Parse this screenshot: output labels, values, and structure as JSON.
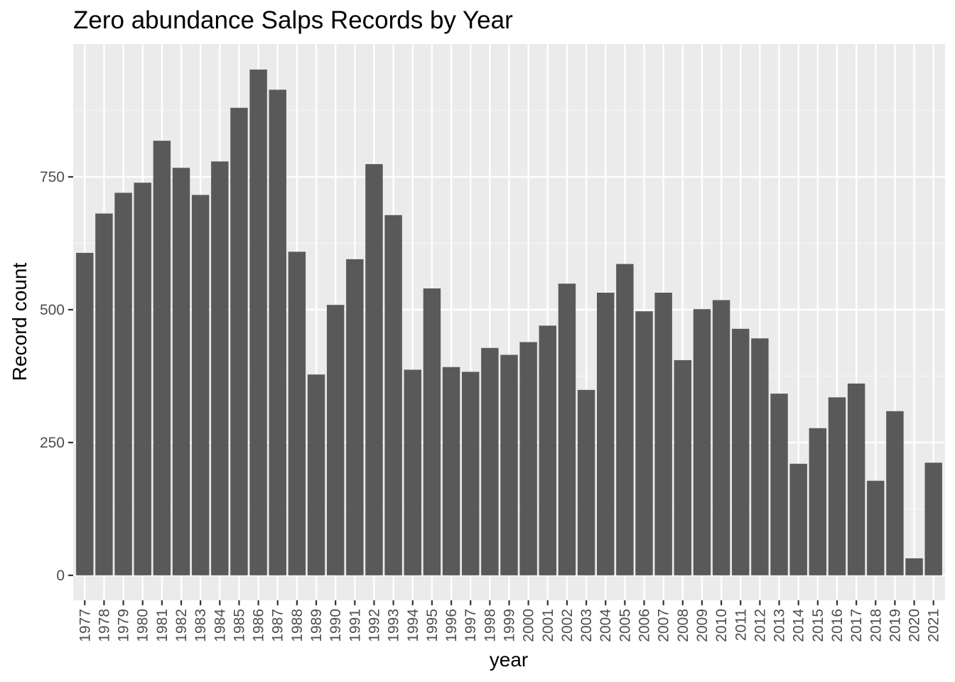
{
  "chart_data": {
    "type": "bar",
    "title": "Zero abundance Salps Records by Year",
    "xlabel": "year",
    "ylabel": "Record count",
    "categories": [
      "1977",
      "1978",
      "1979",
      "1980",
      "1981",
      "1982",
      "1983",
      "1984",
      "1985",
      "1986",
      "1987",
      "1988",
      "1989",
      "1990",
      "1991",
      "1992",
      "1993",
      "1994",
      "1995",
      "1996",
      "1997",
      "1998",
      "1999",
      "2000",
      "2001",
      "2002",
      "2003",
      "2004",
      "2005",
      "2006",
      "2007",
      "2008",
      "2009",
      "2010",
      "2011",
      "2012",
      "2013",
      "2014",
      "2015",
      "2016",
      "2017",
      "2018",
      "2019",
      "2020",
      "2021"
    ],
    "values": [
      607,
      681,
      720,
      739,
      818,
      767,
      716,
      779,
      880,
      952,
      914,
      609,
      378,
      509,
      595,
      774,
      678,
      387,
      540,
      392,
      383,
      428,
      415,
      439,
      470,
      549,
      349,
      532,
      586,
      497,
      532,
      405,
      501,
      518,
      464,
      446,
      342,
      210,
      277,
      335,
      361,
      178,
      309,
      32,
      212
    ],
    "yticks": [
      0,
      250,
      500,
      750
    ],
    "ylim": [
      -47,
      1000
    ],
    "grid": true,
    "legend": "none",
    "colors": {
      "bar": "#595959",
      "panel": "#ebebeb",
      "grid_major": "#ffffff",
      "grid_minor": "#f5f5f5",
      "tick": "#333333",
      "tick_label": "#4d4d4d"
    }
  }
}
